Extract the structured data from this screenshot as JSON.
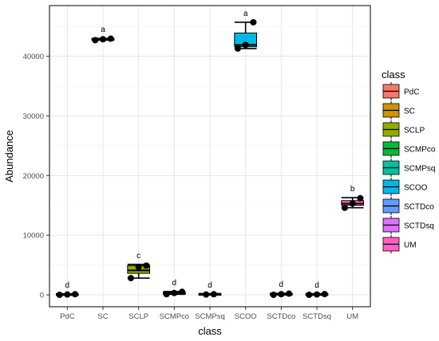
{
  "chart_data": {
    "type": "box",
    "xlabel": "class",
    "ylabel": "Abundance",
    "ylim": [
      -2000,
      48500
    ],
    "yticks": [
      0,
      10000,
      20000,
      30000,
      40000
    ],
    "categories": [
      "PdC",
      "SC",
      "SCLP",
      "SCMPco",
      "SCMPsq",
      "SCOO",
      "SCTDco",
      "SCTDsq",
      "UM"
    ],
    "grid": true,
    "legend": {
      "title": "class",
      "position": "right",
      "entries": [
        "PdC",
        "SC",
        "SCLP",
        "SCMPco",
        "SCMPsq",
        "SCOO",
        "SCTDco",
        "SCTDsq",
        "UM"
      ]
    },
    "colors": [
      "#F8766D",
      "#D39200",
      "#93AA00",
      "#00BA38",
      "#00C19F",
      "#00B9E3",
      "#619CFF",
      "#DB72FB",
      "#FF61C3"
    ],
    "boxes": [
      {
        "name": "PdC",
        "min": 0,
        "q1": 0,
        "median": 50,
        "q3": 100,
        "max": 150,
        "points": [
          0,
          50,
          100
        ],
        "group": "d"
      },
      {
        "name": "SC",
        "min": 42700,
        "q1": 42750,
        "median": 42850,
        "q3": 42950,
        "max": 43000,
        "points": [
          42700,
          42850,
          42950
        ],
        "group": "a"
      },
      {
        "name": "SCLP",
        "min": 2800,
        "q1": 3600,
        "median": 4100,
        "q3": 4900,
        "max": 5100,
        "points": [
          2800,
          4700,
          4900
        ],
        "group": "c"
      },
      {
        "name": "SCMPco",
        "min": 100,
        "q1": 150,
        "median": 250,
        "q3": 400,
        "max": 550,
        "points": [
          100,
          300,
          500
        ],
        "group": "d"
      },
      {
        "name": "SCMPsq",
        "min": 50,
        "q1": 50,
        "median": 80,
        "q3": 120,
        "max": 150,
        "points": [
          50,
          100
        ],
        "group": "d"
      },
      {
        "name": "SCOO",
        "min": 41300,
        "q1": 41600,
        "median": 41900,
        "q3": 43900,
        "max": 45700,
        "points": [
          41300,
          41900,
          45700
        ],
        "group": "a"
      },
      {
        "name": "SCTDco",
        "min": 0,
        "q1": 50,
        "median": 100,
        "q3": 150,
        "max": 250,
        "points": [
          0,
          100,
          200
        ],
        "group": "d"
      },
      {
        "name": "SCTDsq",
        "min": 0,
        "q1": 30,
        "median": 60,
        "q3": 100,
        "max": 150,
        "points": [
          0,
          60,
          120
        ],
        "group": "d"
      },
      {
        "name": "UM",
        "min": 14600,
        "q1": 15000,
        "median": 15300,
        "q3": 15800,
        "max": 16300,
        "points": [
          14600,
          15300,
          16200
        ],
        "group": "b"
      }
    ]
  }
}
